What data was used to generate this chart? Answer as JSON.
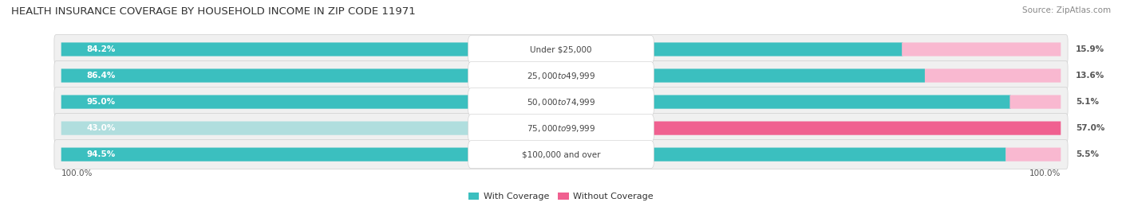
{
  "title": "HEALTH INSURANCE COVERAGE BY HOUSEHOLD INCOME IN ZIP CODE 11971",
  "source": "Source: ZipAtlas.com",
  "categories": [
    "Under $25,000",
    "$25,000 to $49,999",
    "$50,000 to $74,999",
    "$75,000 to $99,999",
    "$100,000 and over"
  ],
  "with_coverage": [
    84.2,
    86.4,
    95.0,
    43.0,
    94.5
  ],
  "without_coverage": [
    15.9,
    13.6,
    5.1,
    57.0,
    5.5
  ],
  "color_with_strong": "#3bbfbf",
  "color_with_light": "#b0dede",
  "color_without_strong": "#f06090",
  "color_without_light": "#f9b8d0",
  "row_bg_color": "#f0f0f0",
  "title_fontsize": 9.5,
  "label_fontsize": 7.5,
  "legend_fontsize": 8,
  "source_fontsize": 7.5,
  "figsize": [
    14.06,
    2.69
  ],
  "dpi": 100
}
